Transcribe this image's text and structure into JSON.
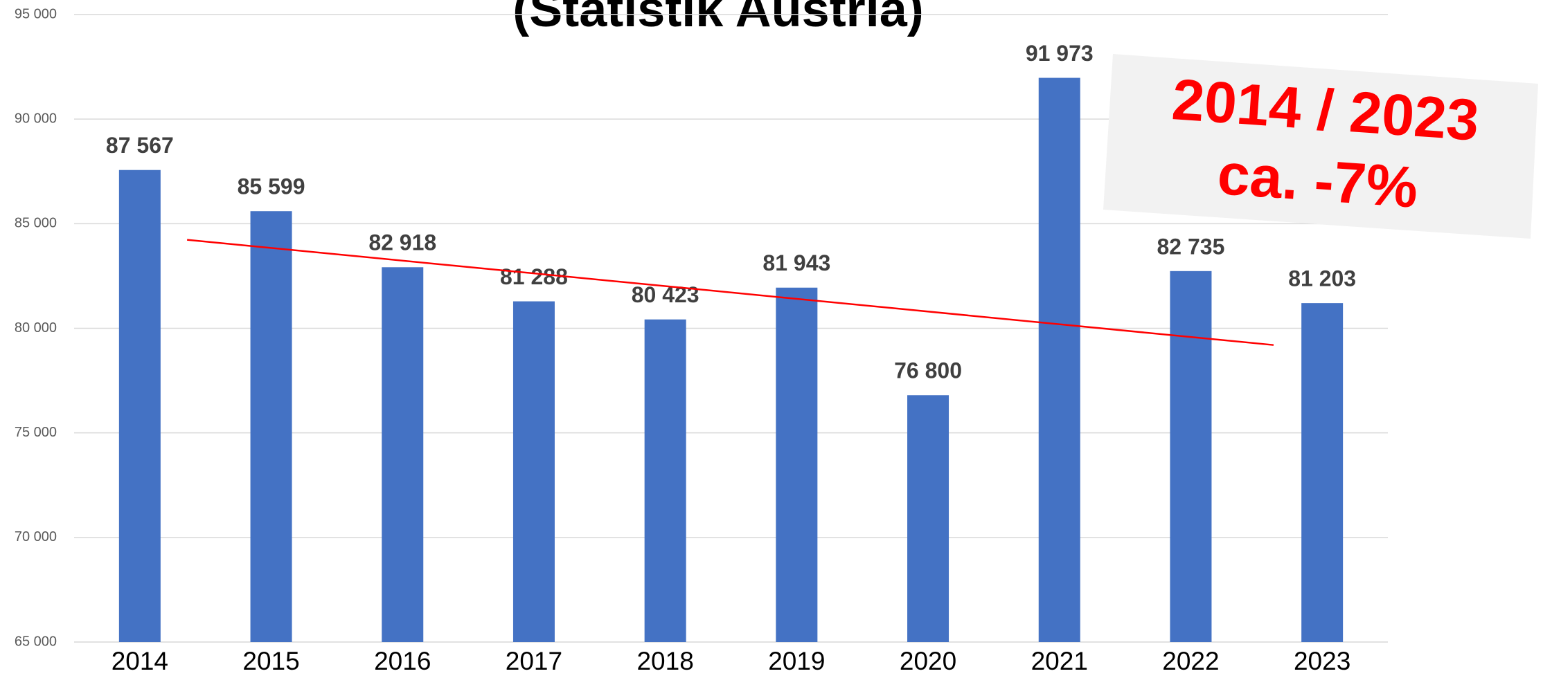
{
  "chart_data": {
    "type": "bar",
    "title": "(Statistik Austria)",
    "categories": [
      "2014",
      "2015",
      "2016",
      "2017",
      "2018",
      "2019",
      "2020",
      "2021",
      "2022",
      "2023"
    ],
    "values": [
      87567,
      85599,
      82918,
      81288,
      80423,
      81943,
      76800,
      91973,
      82735,
      81203
    ],
    "value_labels": [
      "87 567",
      "85 599",
      "82 918",
      "81 288",
      "80 423",
      "81 943",
      "76 800",
      "91 973",
      "82 735",
      "81 203"
    ],
    "color": "#4472c4",
    "ylim": [
      65000,
      95000
    ],
    "yticks": [
      {
        "value": 65000,
        "label": "65 000"
      },
      {
        "value": 70000,
        "label": "70 000"
      },
      {
        "value": 75000,
        "label": "75 000"
      },
      {
        "value": 80000,
        "label": "80 000"
      },
      {
        "value": 85000,
        "label": "85 000"
      },
      {
        "value": 90000,
        "label": "90 000"
      },
      {
        "value": 95000,
        "label": "95 000"
      }
    ],
    "grid": true,
    "trendline": {
      "start": 84230,
      "end": 79200,
      "color": "#ff0000"
    },
    "annotation": {
      "lines": [
        "2014 / 2023",
        "ca. -7%"
      ],
      "color": "#ff0000"
    }
  }
}
